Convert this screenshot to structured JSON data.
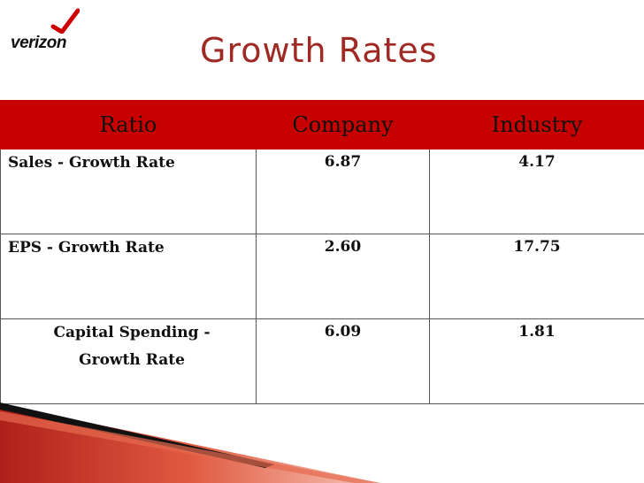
{
  "logo": {
    "text": "verizon"
  },
  "title": "Growth Rates",
  "table": {
    "headers": [
      "Ratio",
      "Company",
      "Industry"
    ],
    "rows": [
      {
        "ratio": "Sales - Growth Rate",
        "company": "6.87",
        "industry": "4.17"
      },
      {
        "ratio": "EPS - Growth Rate",
        "company": "2.60",
        "industry": "17.75"
      },
      {
        "ratio_line1": "Capital Spending -",
        "ratio_line2": "Growth Rate",
        "company": "6.09",
        "industry": "1.81"
      }
    ]
  },
  "colors": {
    "header_bg": "#c70000",
    "title": "#9e2a23",
    "accent": "#c0392b"
  }
}
